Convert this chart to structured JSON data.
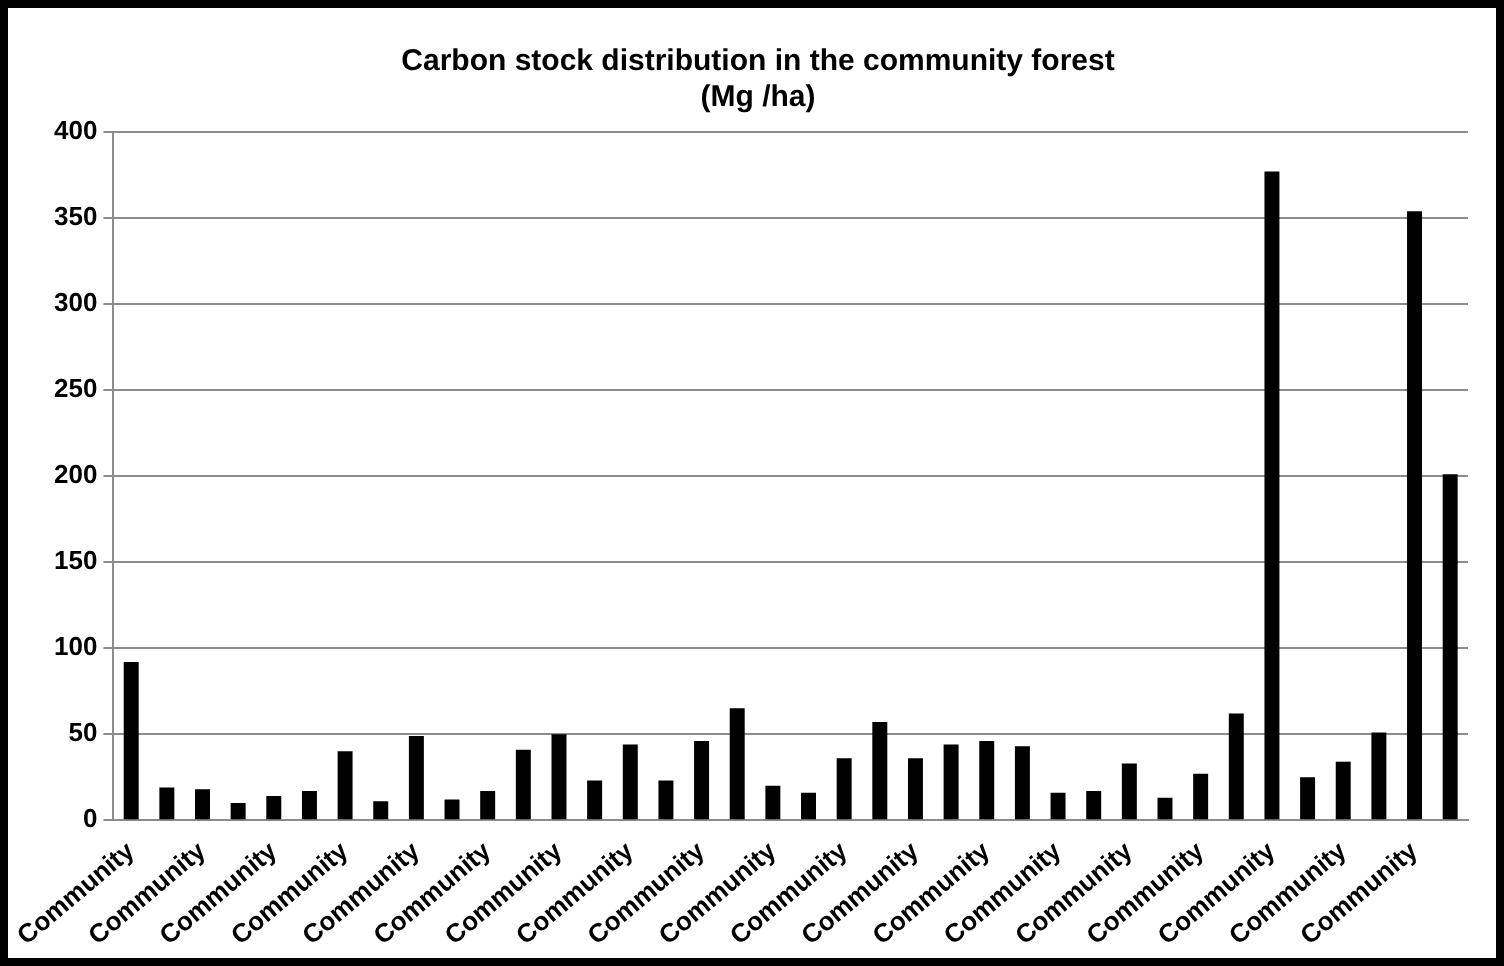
{
  "chart_data": {
    "type": "bar",
    "title": "Carbon stock distribution in the community forest\n(Mg /ha)",
    "categories": [
      "Community",
      null,
      "Community",
      null,
      "Community",
      null,
      "Community",
      null,
      "Community",
      null,
      "Community",
      null,
      "Community",
      null,
      "Community",
      null,
      "Community",
      null,
      "Community",
      null,
      "Community",
      null,
      "Community",
      null,
      "Community",
      null,
      "Community",
      null,
      "Community",
      null,
      "Community",
      null,
      "Community",
      null,
      "Community",
      null,
      "Community",
      null
    ],
    "values": [
      92,
      19,
      18,
      10,
      14,
      17,
      40,
      11,
      49,
      12,
      17,
      41,
      50,
      23,
      44,
      23,
      46,
      65,
      20,
      16,
      36,
      57,
      36,
      44,
      46,
      43,
      16,
      17,
      33,
      13,
      27,
      62,
      377,
      25,
      34,
      51,
      354,
      201
    ],
    "color": "#000000",
    "ylim": [
      0,
      400
    ],
    "yticks": [
      0,
      50,
      100,
      150,
      200,
      250,
      300,
      350,
      400
    ],
    "grid": "y",
    "legend": false
  }
}
